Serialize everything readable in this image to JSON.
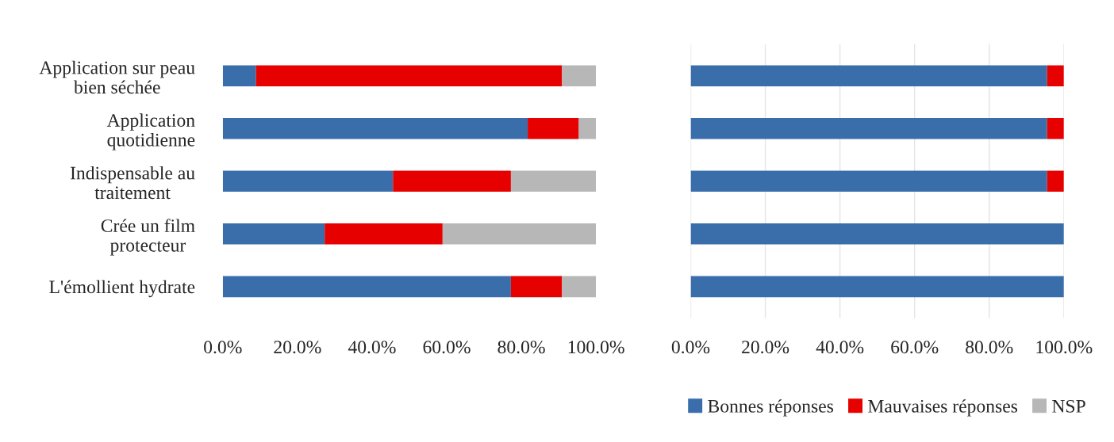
{
  "chart_data": [
    {
      "type": "bar",
      "orientation": "horizontal",
      "stacked": true,
      "categories": [
        "Application sur peau\nbien séchée",
        "Application\nquotidienne",
        "Indispensable au\ntraitement",
        "Crée un film\nprotecteur",
        "L'émollient hydrate"
      ],
      "series": [
        {
          "name": "Bonnes réponses",
          "color": "#3a6eab",
          "values": [
            8.9,
            81.7,
            45.6,
            27.3,
            77.2
          ]
        },
        {
          "name": "Mauvaises réponses",
          "color": "#e60000",
          "values": [
            82.0,
            13.7,
            31.6,
            31.6,
            13.7
          ]
        },
        {
          "name": "NSP",
          "color": "#b7b7b7",
          "values": [
            9.1,
            4.6,
            22.8,
            41.1,
            9.1
          ]
        }
      ],
      "xlim": [
        0,
        100
      ],
      "xticks": [
        {
          "value": 0,
          "label": "0.0%"
        },
        {
          "value": 20,
          "label": "20.0%"
        },
        {
          "value": 40,
          "label": "40.0%"
        },
        {
          "value": 60,
          "label": "60.0%"
        },
        {
          "value": 80,
          "label": "80.0%"
        },
        {
          "value": 100,
          "label": "100.0%"
        }
      ],
      "grid": false,
      "legend": "bottom right"
    },
    {
      "type": "bar",
      "orientation": "horizontal",
      "stacked": true,
      "categories": [
        null,
        null,
        null,
        null,
        null
      ],
      "series": [
        {
          "color": "#3a6eab",
          "values": [
            95.5,
            95.5,
            95.5,
            100,
            100
          ]
        },
        {
          "color": "#e60000",
          "values": [
            4.5,
            4.5,
            4.5,
            null,
            null
          ]
        }
      ],
      "xlim": [
        0,
        100
      ],
      "xticks": [
        {
          "value": 0,
          "label": "0.0%"
        },
        {
          "value": 20,
          "label": "20.0%"
        },
        {
          "value": 40,
          "label": "40.0%"
        },
        {
          "value": 60,
          "label": "60.0%"
        },
        {
          "value": 80,
          "label": "80.0%"
        },
        {
          "value": 100,
          "label": "100.0%"
        }
      ],
      "grid": "x"
    }
  ]
}
